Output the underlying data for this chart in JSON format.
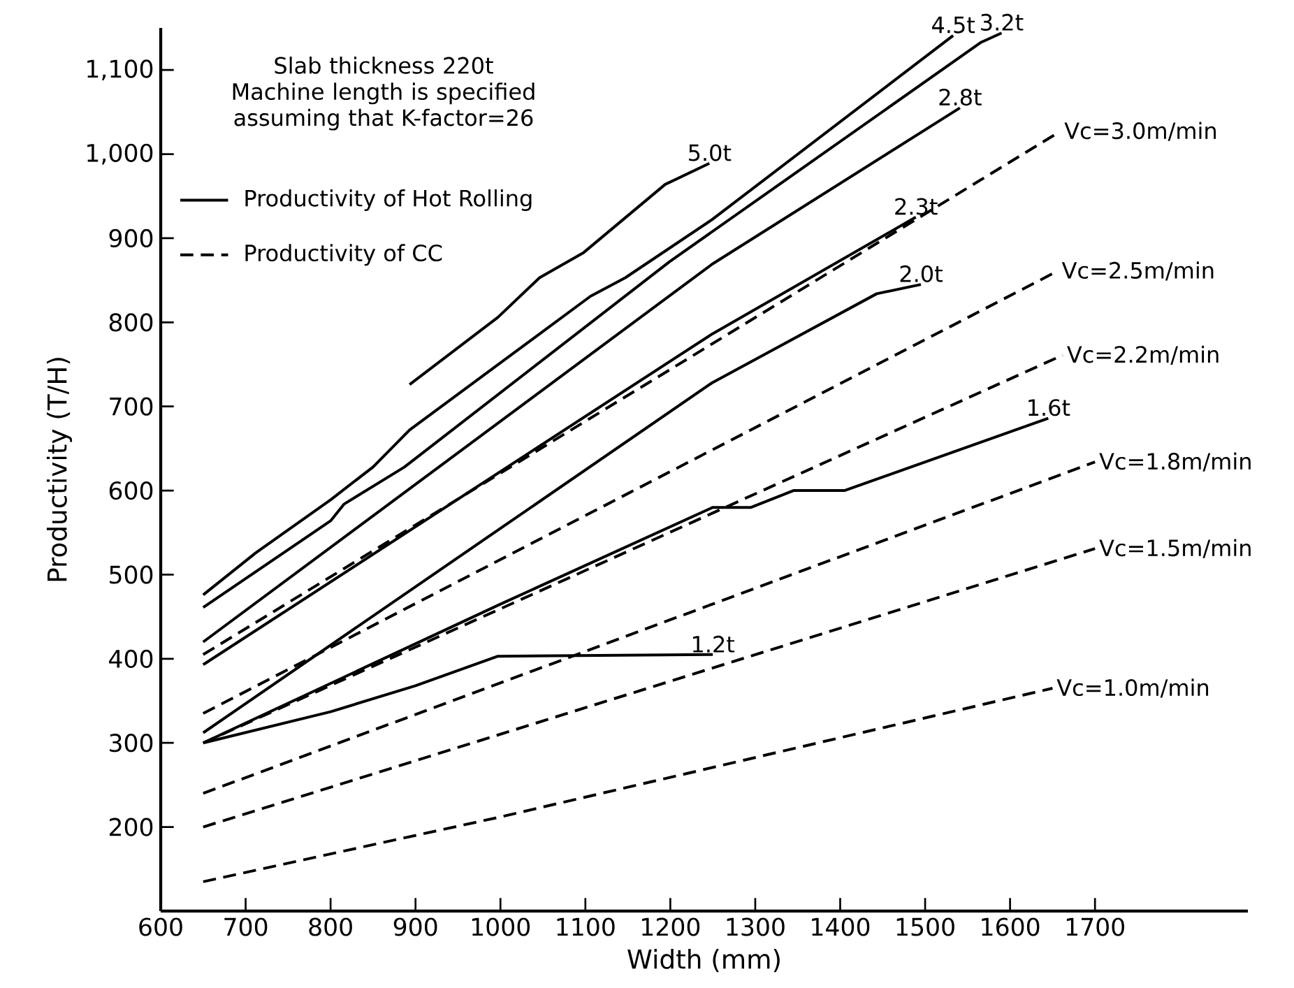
{
  "chart_data": {
    "type": "line",
    "title": "Slab thickness 220t",
    "subtitle": "Machine length is specified assuming that K-factor=26",
    "xlabel": "Width  (mm)",
    "ylabel": "Productivity    (T/H)",
    "annotations": [
      "Productivity of Hot Rolling",
      "Productivity of CC"
    ],
    "xlim": [
      600,
      1880
    ],
    "ylim": [
      100,
      1150
    ],
    "xticks": [
      600,
      700,
      800,
      900,
      1000,
      1100,
      1200,
      1300,
      1400,
      1500,
      1600,
      1700
    ],
    "yticks": [
      200,
      300,
      400,
      500,
      600,
      700,
      800,
      900,
      {
        "value": 1000,
        "label": "1,000"
      },
      {
        "value": 1100,
        "label": "1,100"
      }
    ],
    "grid": false,
    "marker": "none",
    "series": [
      {
        "name": "5.0t",
        "color": "#000000",
        "line_style": "solid",
        "x": [
          893,
          997,
          1046,
          1098,
          1194,
          1246
        ],
        "values": [
          726,
          806,
          853,
          883,
          964,
          989
        ]
      },
      {
        "name": "4.5t",
        "color": "#000000",
        "line_style": "solid",
        "x": [
          650,
          712,
          800,
          850,
          893,
          1106,
          1147,
          1249,
          1533
        ],
        "values": [
          476,
          526,
          589,
          628,
          672,
          831,
          853,
          922,
          1141
        ]
      },
      {
        "name": "3.2t",
        "color": "#000000",
        "line_style": "solid",
        "x": [
          650,
          800,
          816,
          887,
          1199,
          1566,
          1590
        ],
        "values": [
          461,
          564,
          584,
          628,
          872,
          1133,
          1144
        ]
      },
      {
        "name": "2.8t",
        "color": "#000000",
        "line_style": "solid",
        "x": [
          650,
          1249,
          1541
        ],
        "values": [
          420,
          869,
          1055
        ]
      },
      {
        "name": "2.3t",
        "color": "#000000",
        "line_style": "solid",
        "x": [
          650,
          1249,
          1489
        ],
        "values": [
          393,
          786,
          925
        ]
      },
      {
        "name": "2.0t",
        "color": "#000000",
        "line_style": "solid",
        "x": [
          650,
          1249,
          1443,
          1495
        ],
        "values": [
          312,
          728,
          834,
          845
        ]
      },
      {
        "name": "1.6t",
        "color": "#000000",
        "line_style": "solid",
        "x": [
          650,
          1000,
          1250,
          1295,
          1345,
          1405,
          1645
        ],
        "values": [
          300,
          465,
          580,
          580,
          600,
          600,
          686
        ]
      },
      {
        "name": "1.2t",
        "color": "#000000",
        "line_style": "solid",
        "x": [
          650,
          800,
          900,
          997,
          1250
        ],
        "values": [
          300,
          337,
          368,
          403,
          405
        ]
      },
      {
        "name": "Vc=3.0m/min",
        "color": "#000000",
        "line_style": "dashed",
        "x": [
          650,
          1659
        ],
        "values": [
          405,
          1027
        ]
      },
      {
        "name": "Vc=2.5m/min",
        "color": "#000000",
        "line_style": "dashed",
        "x": [
          650,
          1656
        ],
        "values": [
          335,
          861
        ]
      },
      {
        "name": "Vc=2.2m/min",
        "color": "#000000",
        "line_style": "dashed",
        "x": [
          650,
          1662
        ],
        "values": [
          300,
          761
        ]
      },
      {
        "name": "Vc=1.8m/min",
        "color": "#000000",
        "line_style": "dashed",
        "x": [
          650,
          1700
        ],
        "values": [
          240,
          634
        ]
      },
      {
        "name": "Vc=1.5m/min",
        "color": "#000000",
        "line_style": "dashed",
        "x": [
          650,
          1700
        ],
        "values": [
          200,
          531
        ]
      },
      {
        "name": "Vc=1.0m/min",
        "color": "#000000",
        "line_style": "dashed",
        "x": [
          650,
          1000,
          1650
        ],
        "values": [
          135,
          212,
          365
        ]
      }
    ]
  }
}
